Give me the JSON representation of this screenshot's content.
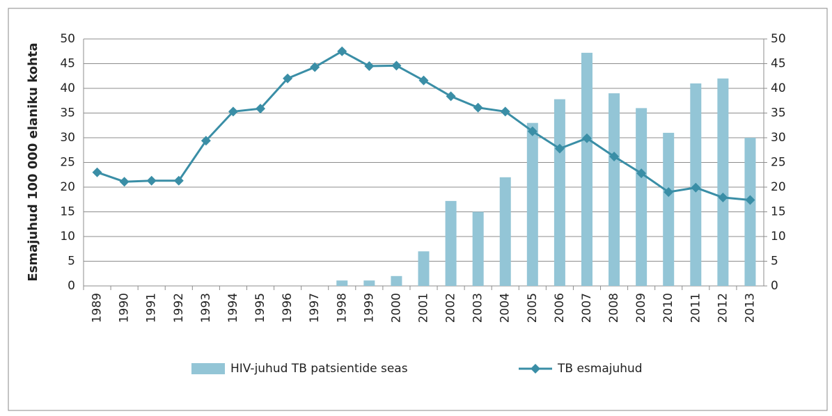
{
  "chart_data": {
    "type": "combo",
    "y_label": "Esmajuhud 100 000 elaniku kohta",
    "categories": [
      "1989",
      "1990",
      "1991",
      "1992",
      "1993",
      "1994",
      "1995",
      "1996",
      "1997",
      "1998",
      "1999",
      "2000",
      "2001",
      "2002",
      "2003",
      "2004",
      "2005",
      "2006",
      "2007",
      "2008",
      "2009",
      "2010",
      "2011",
      "2012",
      "2013"
    ],
    "series": [
      {
        "name": "HIV-juhud TB patsientide  seas",
        "type": "bar",
        "axis": "y2",
        "color": "#93c5d6",
        "values": [
          0,
          0,
          0,
          0,
          0,
          0,
          0,
          0,
          0,
          1.1,
          1.1,
          2,
          7,
          17.2,
          15,
          22,
          33,
          37.8,
          47.2,
          39,
          36,
          31,
          41,
          42,
          30
        ]
      },
      {
        "name": "TB esmajuhud",
        "type": "line",
        "color": "#3a8ea6",
        "values": [
          23,
          21.1,
          21.3,
          21.3,
          29.4,
          35.3,
          35.9,
          42,
          44.3,
          47.5,
          44.5,
          44.6,
          41.6,
          38.4,
          36.1,
          35.3,
          31.3,
          27.8,
          29.9,
          26.2,
          22.8,
          19,
          19.9,
          17.9,
          17.4
        ]
      }
    ],
    "ylim": [
      0,
      50
    ],
    "yticks": [
      0,
      5,
      10,
      15,
      20,
      25,
      30,
      35,
      40,
      45,
      50
    ],
    "y2lim": [
      0,
      50
    ],
    "y2ticks": [
      0,
      5,
      10,
      15,
      20,
      25,
      30,
      35,
      40,
      45,
      50
    ],
    "grid": true,
    "legend": "bottom"
  }
}
